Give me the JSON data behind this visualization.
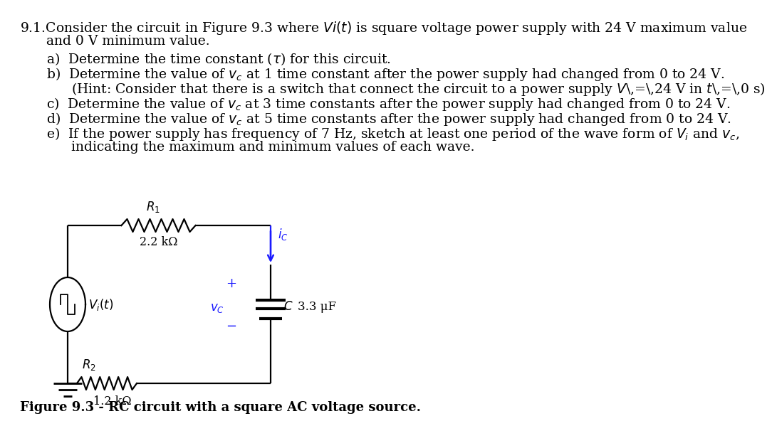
{
  "background_color": "#ffffff",
  "fs_main": 13.5,
  "fs_circuit": 12,
  "circuit_color": "#000000",
  "ic_color": "#1a1aff",
  "vc_color": "#1a1aff",
  "lw": 1.6,
  "text_blocks": {
    "header1": "9.1.Consider the circuit in Figure 9.3 where $\\mathit{Vi}(t)$ is square voltage power supply with 24 V maximum value",
    "header2": "and 0 V minimum value.",
    "a": "a)  Determine the time constant (τ) for this circuit.",
    "b1": "b)  Determine the value of $v_c$ at 1 time constant after the power supply had changed from 0 to 24 V.",
    "b2": "(Hint: Consider that there is a switch that connect the circuit to a power supply $V$ = 24 V in $t$ = 0 s)",
    "c": "c)  Determine the value of $v_c$ at 3 time constants after the power supply had changed from 0 to 24 V.",
    "d": "d)  Determine the value of $v_c$ at 5 time constants after the power supply had changed from 0 to 24 V.",
    "e1": "e)  If the power supply has frequency of 7 Hz, sketch at least one period of the wave form of $V_i$ and $v_c$,",
    "e2": "indicating the maximum and minimum values of each wave."
  },
  "figure_caption": "Figure 9.3 - RC circuit with a square AC voltage source.",
  "R1_label": "$R_1$",
  "R1_value": "2.2 kΩ",
  "R2_label": "$R_2$",
  "R2_value": "1.2 kΩ",
  "C_label": "$C$",
  "C_value": "3.3 μF",
  "ic_label": "$i_C$",
  "vc_plus": "+",
  "vc_label": "$v_C$",
  "vc_minus": "−",
  "Vi_label": "$V_i(t)$"
}
